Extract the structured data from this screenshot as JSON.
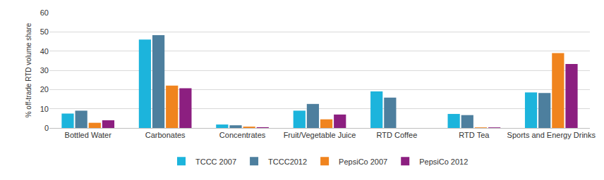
{
  "chart_data": {
    "type": "bar",
    "y_label": "% off-trade RTD volume share",
    "categories": [
      "Bottled Water",
      "Carbonates",
      "Concentrates",
      "Fruit/Vegetable Juice",
      "RTD Coffee",
      "RTD Tea",
      "Sports and Energy Drinks"
    ],
    "series": [
      {
        "name": "TCCC 2007",
        "color": "#1cb4dc",
        "values": [
          7.5,
          46,
          1.8,
          9,
          19,
          7.3,
          18.5
        ]
      },
      {
        "name": "TCCC2012",
        "color": "#4d7f9e",
        "values": [
          9,
          48.3,
          1.4,
          12.5,
          15.8,
          6.7,
          18.2
        ]
      },
      {
        "name": "PepsiCo 2007",
        "color": "#f0841e",
        "values": [
          2.7,
          22,
          0.7,
          4.5,
          0,
          0.3,
          39
        ]
      },
      {
        "name": "PepsiCo 2012",
        "color": "#8c1f80",
        "values": [
          4,
          20.7,
          0.4,
          7,
          0,
          0.3,
          33.3
        ]
      }
    ],
    "ylim": [
      0,
      60
    ],
    "yticks": [
      0,
      10,
      20,
      30,
      40,
      50,
      60
    ],
    "grid": true,
    "legend": "bottom"
  }
}
